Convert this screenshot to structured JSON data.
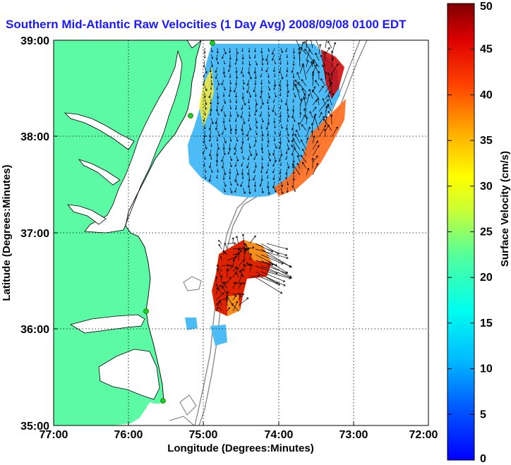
{
  "title": "Southern Mid-Atlantic Raw Velocities (1 Day Avg) 2008/09/08 0100 EDT",
  "colors": {
    "land": "#5dfaa5",
    "ocean": "#ffffff",
    "title": "#1a1aff",
    "isobath": "#8c8c8c",
    "coastline": "#000000",
    "station": "#22cc22"
  },
  "map": {
    "xlabel": "Longitude (Degrees:Minutes)",
    "ylabel": "Latitude (Degrees:Minutes)",
    "xlim": [
      -77,
      -72
    ],
    "ylim": [
      35,
      39
    ],
    "x_ticks": [
      "77:00",
      "76:00",
      "75:00",
      "74:00",
      "73:00",
      "72:00"
    ],
    "y_ticks": [
      "35:00",
      "36:00",
      "37:00",
      "38:00",
      "39:00"
    ],
    "grid": "dotted"
  },
  "colorbar": {
    "label": "Surface Velocity (cm/s)",
    "min": 0,
    "max": 50,
    "ticks": [
      "0",
      "5",
      "10",
      "15",
      "20",
      "25",
      "30",
      "35",
      "40",
      "45",
      "50"
    ],
    "colormap": "jet"
  }
}
